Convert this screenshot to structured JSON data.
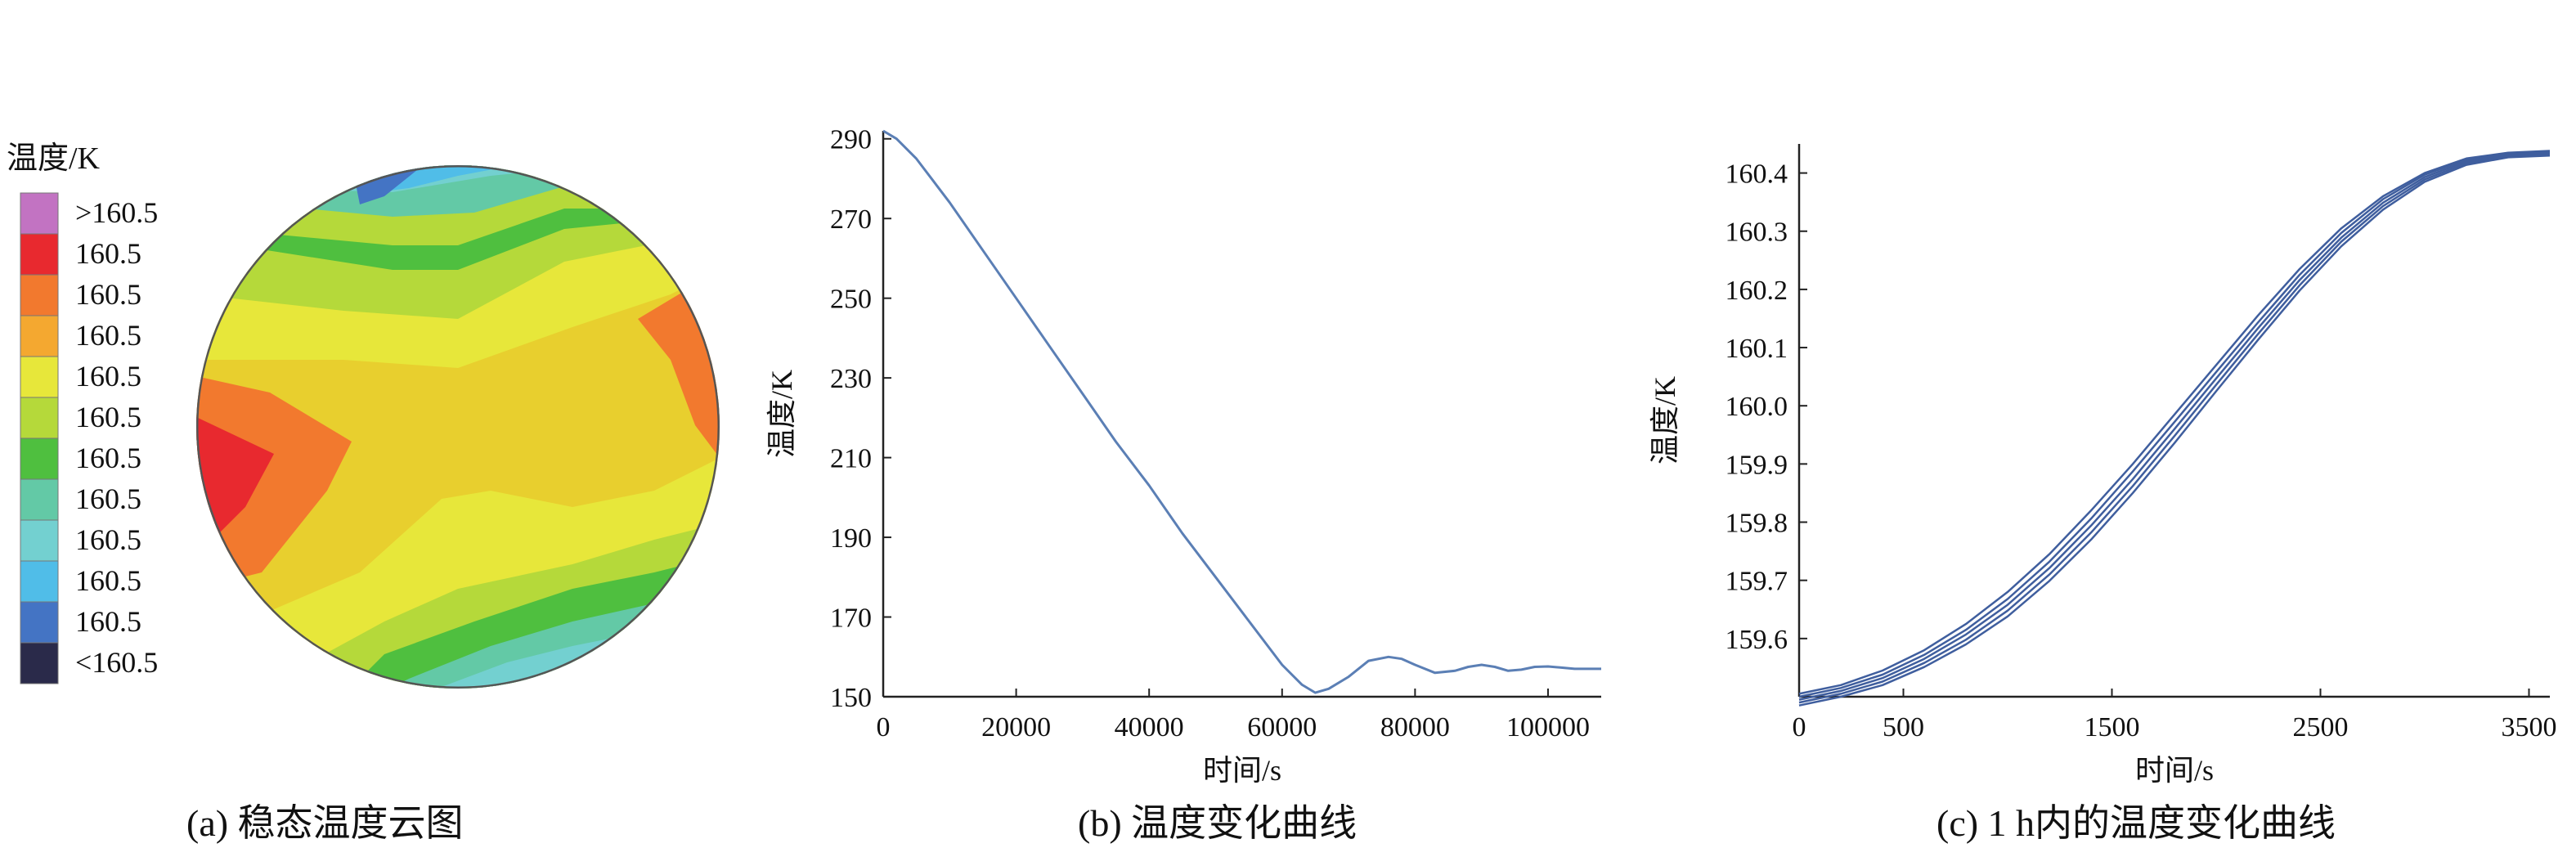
{
  "panel_a": {
    "caption": "(a)  稳态温度云图",
    "legend_title": "温度/K",
    "legend_items": [
      {
        "label": ">160.5",
        "color": "#c273c2"
      },
      {
        "label": "160.5",
        "color": "#e8292f"
      },
      {
        "label": "160.5",
        "color": "#f2792e"
      },
      {
        "label": "160.5",
        "color": "#f4a830"
      },
      {
        "label": "160.5",
        "color": "#e7e73a"
      },
      {
        "label": "160.5",
        "color": "#b5d93a"
      },
      {
        "label": "160.5",
        "color": "#4fbf3f"
      },
      {
        "label": "160.5",
        "color": "#63c9a6"
      },
      {
        "label": "160.5",
        "color": "#73d0d0"
      },
      {
        "label": "160.5",
        "color": "#50bde8"
      },
      {
        "label": "160.5",
        "color": "#4474c4"
      },
      {
        "label": "<160.5",
        "color": "#2a2a4a"
      }
    ]
  },
  "chart_data": [
    {
      "type": "line",
      "caption": "(b)  温度变化曲线",
      "xlabel": "时间/s",
      "ylabel": "温度/K",
      "xlim": [
        0,
        108000
      ],
      "ylim": [
        150,
        292
      ],
      "xticks": [
        "0",
        "20000",
        "40000",
        "60000",
        "80000",
        "100000"
      ],
      "xtick_values": [
        0,
        20000,
        40000,
        60000,
        80000,
        100000
      ],
      "yticks": [
        "150",
        "170",
        "190",
        "210",
        "230",
        "250",
        "270",
        "290"
      ],
      "ytick_values": [
        150,
        170,
        190,
        210,
        230,
        250,
        270,
        290
      ],
      "line_color": "#5b7fb5",
      "x": [
        0,
        2000,
        5000,
        10000,
        15000,
        20000,
        25000,
        30000,
        35000,
        40000,
        45000,
        50000,
        55000,
        60000,
        63000,
        65000,
        67000,
        70000,
        73000,
        76000,
        78000,
        80000,
        83000,
        86000,
        88000,
        90000,
        92000,
        94000,
        96000,
        98000,
        100000,
        102000,
        104000,
        106000,
        108000
      ],
      "y": [
        292,
        290,
        285,
        274,
        262,
        250,
        238,
        226,
        214,
        203,
        191,
        180,
        169,
        158,
        153,
        151,
        152,
        155,
        159,
        160,
        159.5,
        158,
        156,
        156.5,
        157.5,
        158,
        157.5,
        156.5,
        156.8,
        157.5,
        157.6,
        157.3,
        157,
        157,
        157
      ]
    },
    {
      "type": "line",
      "caption": "(c)  1 h内的温度变化曲线",
      "xlabel": "时间/s",
      "ylabel": "温度/K",
      "xlim": [
        0,
        3600
      ],
      "ylim": [
        159.5,
        160.45
      ],
      "xticks": [
        "0",
        "500",
        "1500",
        "2500",
        "3500"
      ],
      "xtick_values": [
        0,
        500,
        1500,
        2500,
        3500
      ],
      "yticks": [
        "159.6",
        "159.7",
        "159.8",
        "159.9",
        "160.0",
        "160.1",
        "160.2",
        "160.3",
        "160.4"
      ],
      "ytick_values": [
        159.6,
        159.7,
        159.8,
        159.9,
        160.0,
        160.1,
        160.2,
        160.3,
        160.4
      ],
      "line_color": "#3f5e9e",
      "series": [
        {
          "values": [
            159.505,
            159.52,
            159.545,
            159.58,
            159.625,
            159.68,
            159.745,
            159.82,
            159.9,
            159.985,
            160.07,
            160.155,
            160.235,
            160.305,
            160.36,
            160.4,
            160.425,
            160.435,
            160.438
          ]
        },
        {
          "values": [
            159.5,
            159.515,
            159.538,
            159.572,
            159.615,
            159.668,
            159.732,
            159.806,
            159.887,
            159.972,
            160.058,
            160.143,
            160.225,
            160.297,
            160.355,
            160.397,
            160.423,
            160.433,
            160.436
          ]
        },
        {
          "values": [
            159.495,
            159.51,
            159.532,
            159.565,
            159.607,
            159.658,
            159.721,
            159.794,
            159.874,
            159.96,
            160.047,
            160.133,
            160.216,
            160.289,
            160.349,
            160.393,
            160.42,
            160.431,
            160.434
          ]
        },
        {
          "values": [
            159.49,
            159.505,
            159.526,
            159.558,
            159.598,
            159.648,
            159.71,
            159.782,
            159.862,
            159.948,
            160.036,
            160.123,
            160.207,
            160.282,
            160.343,
            160.389,
            160.417,
            160.429,
            160.432
          ]
        },
        {
          "values": [
            159.485,
            159.5,
            159.52,
            159.551,
            159.59,
            159.638,
            159.699,
            159.77,
            159.85,
            159.936,
            160.025,
            160.113,
            160.198,
            160.274,
            160.337,
            160.385,
            160.414,
            160.427,
            160.43
          ]
        }
      ],
      "x": [
        0,
        200,
        400,
        600,
        800,
        1000,
        1200,
        1400,
        1600,
        1800,
        2000,
        2200,
        2400,
        2600,
        2800,
        3000,
        3200,
        3400,
        3600
      ]
    }
  ]
}
